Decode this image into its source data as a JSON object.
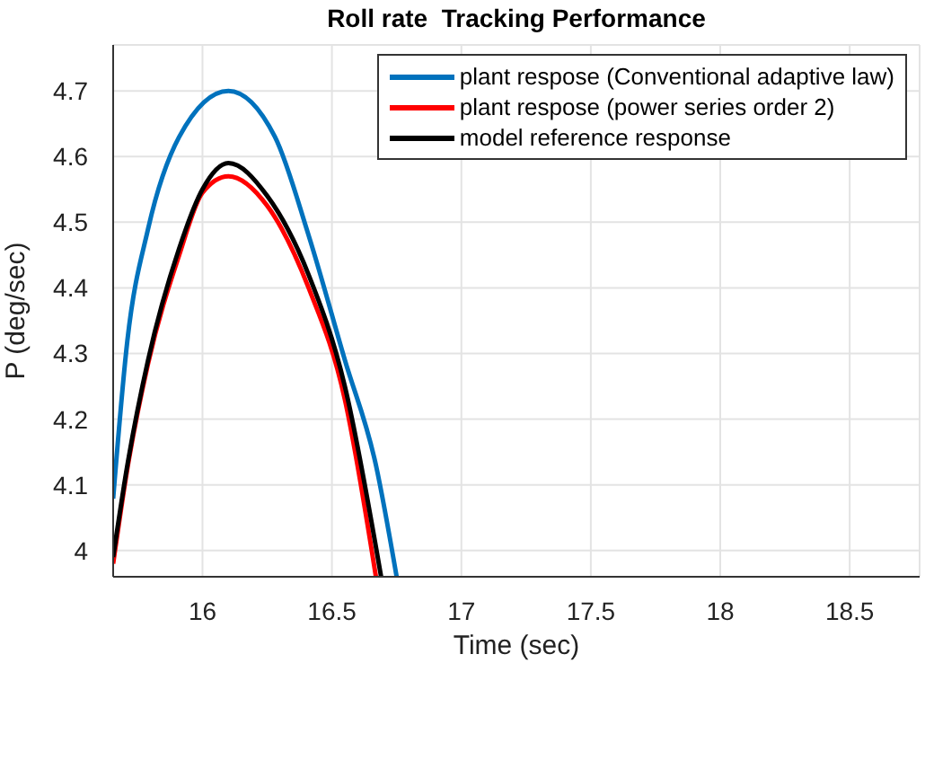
{
  "chart_data": {
    "type": "line",
    "title": "Roll rate  Tracking Performance",
    "xlabel": "Time (sec)",
    "ylabel": "P (deg/sec)",
    "xlim": [
      15.655,
      18.77
    ],
    "xticks": [
      16,
      16.5,
      17,
      17.5,
      18,
      18.5
    ],
    "ylim": [
      3.96,
      4.77
    ],
    "yticks": [
      4,
      4.1,
      4.2,
      4.3,
      4.4,
      4.5,
      4.6,
      4.7
    ],
    "grid": true,
    "legend": "top right",
    "marker": "none",
    "line_style": "solid",
    "series": [
      {
        "name": "plant respose (Conventional adaptive law)",
        "color": "#0072bd",
        "x": [
          15.655,
          15.71,
          15.79,
          15.91,
          16.1,
          16.28,
          16.41,
          16.55,
          16.67,
          16.75
        ],
        "values": [
          4.079,
          4.32,
          4.49,
          4.63,
          4.7,
          4.63,
          4.48,
          4.29,
          4.13,
          3.96
        ]
      },
      {
        "name": "plant respose (power series order 2)",
        "color": "#ff0000",
        "x": [
          15.655,
          15.71,
          15.79,
          15.91,
          16.0,
          16.1,
          16.25,
          16.41,
          16.55,
          16.67
        ],
        "values": [
          3.98,
          4.125,
          4.285,
          4.45,
          4.545,
          4.57,
          4.525,
          4.4,
          4.23,
          3.96
        ]
      },
      {
        "name": "model reference response",
        "color": "#000000",
        "x": [
          15.655,
          15.71,
          15.79,
          15.91,
          16.0,
          16.1,
          16.25,
          16.41,
          16.55,
          16.69
        ],
        "values": [
          3.99,
          4.13,
          4.29,
          4.46,
          4.55,
          4.59,
          4.54,
          4.42,
          4.25,
          3.96
        ]
      }
    ]
  }
}
